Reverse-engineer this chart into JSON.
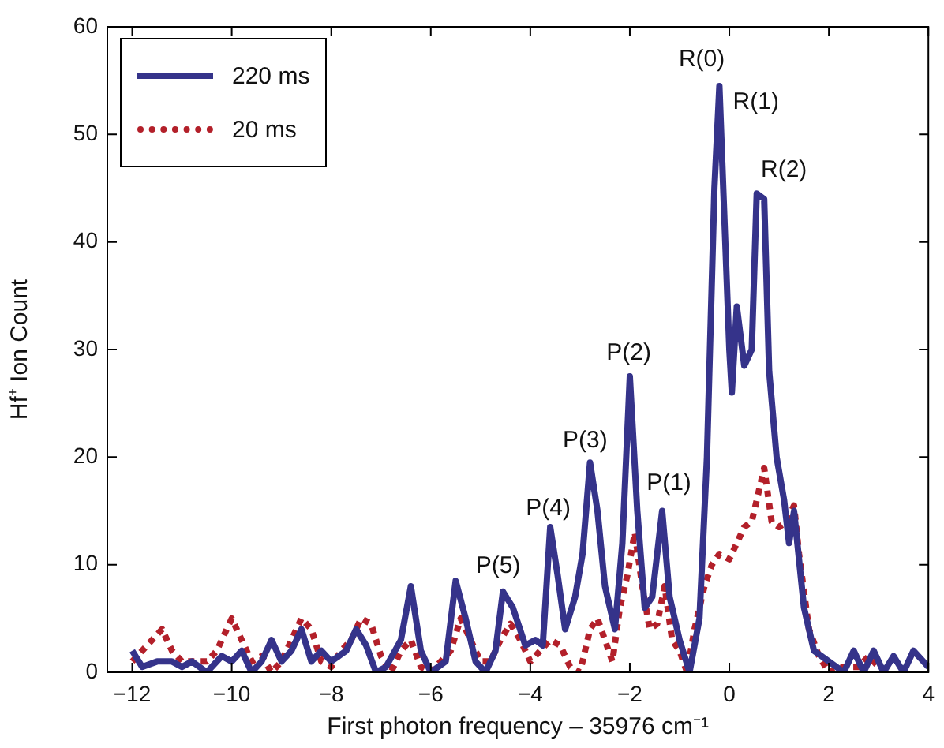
{
  "chart_data": {
    "type": "line",
    "xlabel": "First photon frequency – 35976 cm⁻¹",
    "ylabel": "Hf⁺ Ion Count",
    "xlim": [
      -12.5,
      4
    ],
    "xticks": [
      -12,
      -10,
      -8,
      -6,
      -4,
      -2,
      0,
      2,
      4
    ],
    "ylim": [
      0,
      60
    ],
    "yticks": [
      0,
      10,
      20,
      30,
      40,
      50,
      60
    ],
    "grid": false,
    "legend": "top left",
    "marker": "none",
    "series": [
      {
        "name": "220 ms",
        "color": "#35338a",
        "line_style": "solid",
        "x": [
          -12,
          -11.8,
          -11.5,
          -11.2,
          -11,
          -10.8,
          -10.5,
          -10.2,
          -10,
          -9.8,
          -9.6,
          -9.4,
          -9.2,
          -9,
          -8.8,
          -8.6,
          -8.4,
          -8.2,
          -8,
          -7.7,
          -7.5,
          -7.3,
          -7.1,
          -6.9,
          -6.6,
          -6.4,
          -6.2,
          -6,
          -5.7,
          -5.5,
          -5.3,
          -5.1,
          -4.9,
          -4.7,
          -4.55,
          -4.35,
          -4.1,
          -3.9,
          -3.75,
          -3.6,
          -3.45,
          -3.3,
          -3.1,
          -2.95,
          -2.8,
          -2.65,
          -2.5,
          -2.3,
          -2.15,
          -2,
          -1.85,
          -1.7,
          -1.55,
          -1.35,
          -1.2,
          -1,
          -0.8,
          -0.6,
          -0.45,
          -0.3,
          -0.2,
          0,
          0.05,
          0.15,
          0.3,
          0.45,
          0.55,
          0.7,
          0.8,
          0.95,
          1.1,
          1.2,
          1.3,
          1.5,
          1.7,
          2,
          2.3,
          2.5,
          2.7,
          2.9,
          3.1,
          3.3,
          3.5,
          3.7,
          3.9,
          4
        ],
        "values": [
          2,
          0.5,
          1,
          1,
          0.5,
          1,
          0,
          1.5,
          1,
          2,
          0,
          1,
          3,
          1,
          2,
          4,
          1,
          2,
          1,
          2,
          4,
          2.5,
          0,
          0.5,
          3,
          8,
          2,
          0,
          1,
          8.5,
          5,
          1,
          0,
          2,
          7.5,
          6,
          2.5,
          3,
          2.5,
          13.5,
          9,
          4,
          7,
          11,
          19.5,
          15,
          8,
          4,
          12,
          27.5,
          15,
          6,
          7,
          15,
          7,
          3,
          0,
          5,
          20,
          45,
          54.5,
          30,
          26,
          34,
          28.5,
          30,
          44.5,
          44,
          28,
          20,
          16,
          12,
          15,
          6,
          2,
          1,
          0,
          2,
          0,
          2,
          0,
          1.5,
          0,
          2,
          1,
          0.5
        ]
      },
      {
        "name": "20 ms",
        "color": "#b3202a",
        "line_style": "dotted",
        "x": [
          -12,
          -11.8,
          -11.6,
          -11.4,
          -11.2,
          -11,
          -10.8,
          -10.5,
          -10.3,
          -10.1,
          -10,
          -9.8,
          -9.6,
          -9.4,
          -9.2,
          -9,
          -8.8,
          -8.6,
          -8.4,
          -8.2,
          -8,
          -7.8,
          -7.6,
          -7.4,
          -7.2,
          -7,
          -6.8,
          -6.6,
          -6.4,
          -6.2,
          -6,
          -5.8,
          -5.6,
          -5.4,
          -5.2,
          -5,
          -4.8,
          -4.6,
          -4.4,
          -4.2,
          -4,
          -3.8,
          -3.6,
          -3.4,
          -3.2,
          -3,
          -2.8,
          -2.65,
          -2.5,
          -2.35,
          -2.2,
          -2.05,
          -1.9,
          -1.75,
          -1.6,
          -1.45,
          -1.3,
          -1.15,
          -1,
          -0.85,
          -0.7,
          -0.5,
          -0.35,
          -0.2,
          0,
          0.15,
          0.3,
          0.45,
          0.6,
          0.7,
          0.85,
          1,
          1.15,
          1.3,
          1.4,
          1.6,
          1.8,
          2,
          2.3,
          2.6,
          2.8,
          3,
          3.2
        ],
        "values": [
          1,
          2,
          3,
          4,
          2,
          1,
          1,
          1,
          2,
          4,
          5,
          3,
          1,
          1.5,
          0,
          1,
          3,
          5,
          4,
          1,
          0.5,
          2,
          3,
          5,
          4.5,
          1.5,
          0,
          2,
          3,
          0.5,
          0,
          1,
          2,
          5,
          3,
          1,
          1,
          3,
          4.5,
          3,
          1,
          2,
          3,
          2.5,
          0.5,
          0,
          4,
          5,
          3,
          1,
          6,
          9,
          13,
          8,
          4,
          4.5,
          8,
          3,
          2,
          0,
          4,
          8,
          10,
          11,
          10.5,
          12,
          13.5,
          14,
          17,
          19,
          14,
          13.5,
          14,
          15.5,
          11,
          4,
          1.5,
          0,
          0.5,
          0.5,
          1.5,
          0.5,
          0
        ]
      }
    ],
    "annotations": [
      "R(0)",
      "R(1)",
      "R(2)",
      "P(1)",
      "P(2)",
      "P(3)",
      "P(4)",
      "P(5)"
    ]
  }
}
